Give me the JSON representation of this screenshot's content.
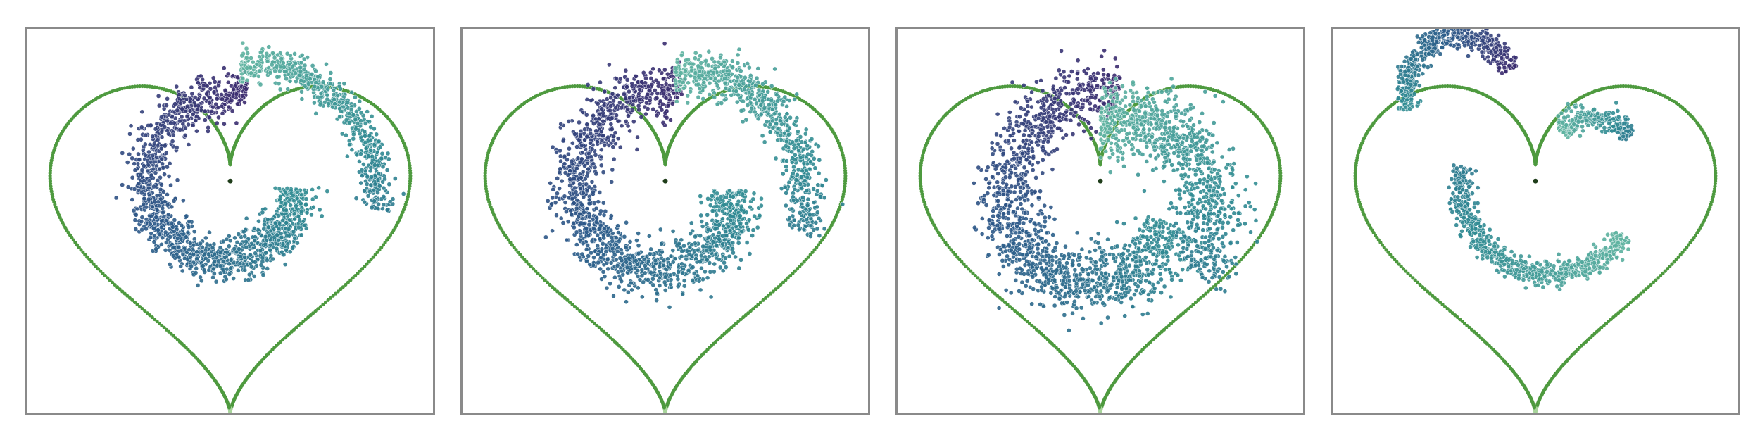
{
  "figure": {
    "title": "",
    "panel_count": 4
  },
  "chart_data": [
    {
      "type": "scatter",
      "panel": 1,
      "description_key": "spiral-arc-two-arms",
      "xlim": [
        -1.35,
        1.35
      ],
      "ylim": [
        -1.45,
        1.05
      ],
      "grid": false,
      "legend": "none",
      "boundary": {
        "shape": "heart",
        "color": "#4e9a3f",
        "fade_color": "#a8d49b"
      },
      "colormap": [
        "#3b2a6e",
        "#2b5c8a",
        "#2f8a92",
        "#5fb3a0"
      ],
      "series": [
        {
          "name": "",
          "arm": "inner",
          "center": [
            0.0,
            0.02
          ],
          "radius_start": 0.62,
          "radius_end": 0.42,
          "angle_start_deg": 80,
          "angle_end_deg": 360,
          "thickness": 0.16,
          "points": 1400
        },
        {
          "name": "",
          "arm": "outer",
          "center": [
            0.0,
            0.05
          ],
          "radius_start": 1.0,
          "radius_end": 0.78,
          "angle_start_deg": -10,
          "angle_end_deg": 85,
          "thickness": 0.12,
          "points": 600
        }
      ]
    },
    {
      "type": "scatter",
      "panel": 2,
      "description_key": "spiral-arc-two-arms-spread",
      "xlim": [
        -1.35,
        1.35
      ],
      "ylim": [
        -1.45,
        1.05
      ],
      "grid": false,
      "legend": "none",
      "boundary": {
        "shape": "heart",
        "color": "#4e9a3f",
        "fade_color": "#a8d49b"
      },
      "colormap": [
        "#3b2a6e",
        "#2b5c8a",
        "#2f8a92",
        "#5fb3a0"
      ],
      "series": [
        {
          "name": "",
          "arm": "inner",
          "center": [
            0.0,
            0.0
          ],
          "radius_start": 0.66,
          "radius_end": 0.46,
          "angle_start_deg": 80,
          "angle_end_deg": 360,
          "thickness": 0.19,
          "points": 1500
        },
        {
          "name": "",
          "arm": "outer",
          "center": [
            0.0,
            0.05
          ],
          "radius_start": 0.98,
          "radius_end": 0.72,
          "angle_start_deg": -20,
          "angle_end_deg": 85,
          "thickness": 0.15,
          "points": 700
        }
      ]
    },
    {
      "type": "scatter",
      "panel": 3,
      "description_key": "diffuse-cloud",
      "xlim": [
        -1.35,
        1.35
      ],
      "ylim": [
        -1.45,
        1.05
      ],
      "grid": false,
      "legend": "none",
      "boundary": {
        "shape": "heart",
        "color": "#4e9a3f",
        "fade_color": "#a8d49b"
      },
      "colormap": [
        "#3b2a6e",
        "#2b5c8a",
        "#2f8a92",
        "#5fb3a0"
      ],
      "series": [
        {
          "name": "",
          "arm": "inner",
          "center": [
            0.0,
            -0.05
          ],
          "radius_start": 0.7,
          "radius_end": 0.5,
          "angle_start_deg": 80,
          "angle_end_deg": 340,
          "thickness": 0.24,
          "points": 1500
        },
        {
          "name": "",
          "arm": "outer",
          "center": [
            0.0,
            0.0
          ],
          "radius_start": 0.85,
          "radius_end": 0.45,
          "angle_start_deg": -40,
          "angle_end_deg": 90,
          "thickness": 0.28,
          "points": 900
        }
      ]
    },
    {
      "type": "scatter",
      "panel": 4,
      "description_key": "separated-arcs",
      "xlim": [
        -1.35,
        1.35
      ],
      "ylim": [
        -1.45,
        1.05
      ],
      "grid": false,
      "legend": "none",
      "boundary": {
        "shape": "heart",
        "color": "#4e9a3f",
        "fade_color": "#a8d49b"
      },
      "colormap": [
        "#3b2a6e",
        "#2b5c8a",
        "#2f8a92",
        "#5fb3a0"
      ],
      "series": [
        {
          "name": "",
          "arm": "top-left",
          "center": [
            -0.5,
            0.65
          ],
          "radius_start": 0.36,
          "radius_end": 0.36,
          "angle_start_deg": 20,
          "angle_end_deg": 200,
          "thickness": 0.09,
          "points": 500
        },
        {
          "name": "",
          "arm": "bottom",
          "center": [
            0.1,
            0.05
          ],
          "radius_start": 0.6,
          "radius_end": 0.6,
          "angle_start_deg": 170,
          "angle_end_deg": 325,
          "thickness": 0.09,
          "points": 700
        },
        {
          "name": "",
          "arm": "right-small",
          "center": [
            0.38,
            0.2
          ],
          "radius_start": 0.28,
          "radius_end": 0.28,
          "angle_start_deg": 30,
          "angle_end_deg": 140,
          "thickness": 0.08,
          "points": 250
        }
      ]
    }
  ]
}
